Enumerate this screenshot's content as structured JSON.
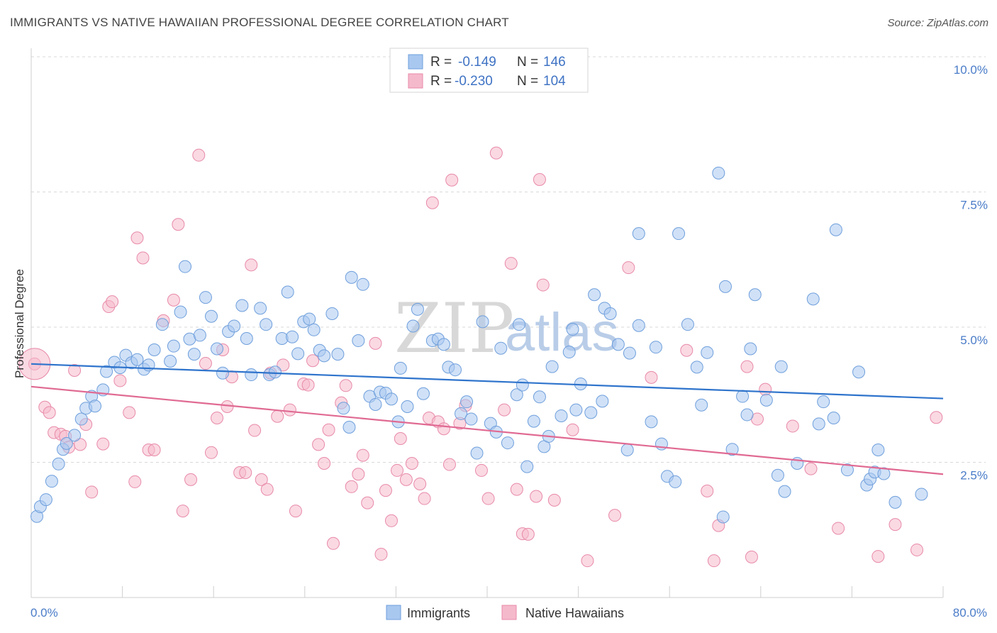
{
  "title": "IMMIGRANTS VS NATIVE HAWAIIAN PROFESSIONAL DEGREE CORRELATION CHART",
  "source": "Source: ZipAtlas.com",
  "watermark": {
    "zip": "ZIP",
    "atlas": "atlas"
  },
  "colors": {
    "blue_fill": "#a9c8f0",
    "blue_stroke": "#6f9fdc",
    "blue_line": "#2f74cc",
    "pink_fill": "#f5b9cc",
    "pink_stroke": "#e88aa8",
    "pink_line": "#e06a93",
    "grid": "#d8d8d8",
    "axis_label": "#4a7cc8"
  },
  "legend": {
    "rows": [
      {
        "r_label": "R =",
        "r_value": "-0.149",
        "n_label": "N =",
        "n_value": "146"
      },
      {
        "r_label": "R =",
        "r_value": "-0.230",
        "n_label": "N =",
        "n_value": "104"
      }
    ]
  },
  "bottom_legend": [
    "Immigrants",
    "Native Hawaiians"
  ],
  "chart_data": {
    "type": "scatter",
    "title": "IMMIGRANTS VS NATIVE HAWAIIAN PROFESSIONAL DEGREE CORRELATION CHART",
    "xlabel": "",
    "ylabel": "Professional Degree",
    "xlim": [
      0,
      80
    ],
    "ylim": [
      0,
      10.0
    ],
    "x_tick_labels": [
      "0.0%",
      "80.0%"
    ],
    "y_ticks": [
      2.5,
      5.0,
      7.5,
      10.0
    ],
    "y_tick_labels": [
      "2.5%",
      "5.0%",
      "7.5%",
      "10.0%"
    ],
    "grid": "horizontal dashed",
    "legend_position": "top-center",
    "series": [
      {
        "name": "Immigrants",
        "r": -0.149,
        "n": 146,
        "trend": {
          "x": [
            0,
            80
          ],
          "y": [
            4.32,
            3.68
          ]
        },
        "points": [
          [
            0.5,
            1.5
          ],
          [
            0.8,
            1.68
          ],
          [
            1.3,
            1.81
          ],
          [
            1.8,
            2.15
          ],
          [
            2.4,
            2.47
          ],
          [
            2.8,
            2.74
          ],
          [
            3.1,
            2.85
          ],
          [
            3.8,
            3.0
          ],
          [
            4.4,
            3.3
          ],
          [
            4.8,
            3.5
          ],
          [
            5.3,
            3.72
          ],
          [
            5.6,
            3.54
          ],
          [
            6.3,
            3.84
          ],
          [
            6.6,
            4.18
          ],
          [
            7.3,
            4.35
          ],
          [
            7.8,
            4.25
          ],
          [
            8.3,
            4.48
          ],
          [
            8.8,
            4.34
          ],
          [
            9.3,
            4.4
          ],
          [
            9.9,
            4.22
          ],
          [
            10.3,
            4.3
          ],
          [
            10.8,
            4.58
          ],
          [
            11.5,
            5.05
          ],
          [
            12.2,
            4.37
          ],
          [
            12.5,
            4.65
          ],
          [
            13.1,
            5.28
          ],
          [
            13.5,
            6.12
          ],
          [
            13.9,
            4.78
          ],
          [
            14.3,
            4.5
          ],
          [
            14.8,
            4.85
          ],
          [
            15.3,
            5.55
          ],
          [
            15.8,
            5.2
          ],
          [
            16.3,
            4.6
          ],
          [
            16.8,
            4.15
          ],
          [
            17.3,
            4.92
          ],
          [
            17.8,
            5.02
          ],
          [
            18.5,
            5.4
          ],
          [
            18.9,
            4.79
          ],
          [
            19.3,
            4.12
          ],
          [
            20.1,
            5.35
          ],
          [
            20.6,
            5.05
          ],
          [
            20.9,
            4.12
          ],
          [
            21.4,
            4.17
          ],
          [
            22.0,
            4.79
          ],
          [
            22.5,
            5.65
          ],
          [
            22.9,
            4.82
          ],
          [
            23.4,
            4.51
          ],
          [
            23.9,
            5.1
          ],
          [
            24.4,
            5.15
          ],
          [
            24.8,
            4.95
          ],
          [
            25.3,
            4.57
          ],
          [
            25.7,
            4.47
          ],
          [
            26.4,
            5.25
          ],
          [
            26.9,
            4.5
          ],
          [
            27.4,
            3.5
          ],
          [
            27.9,
            3.15
          ],
          [
            28.1,
            5.92
          ],
          [
            28.7,
            4.75
          ],
          [
            29.1,
            5.79
          ],
          [
            29.7,
            3.72
          ],
          [
            30.2,
            3.57
          ],
          [
            30.6,
            3.8
          ],
          [
            31.1,
            3.78
          ],
          [
            31.6,
            3.67
          ],
          [
            32.2,
            3.25
          ],
          [
            32.4,
            4.24
          ],
          [
            33.0,
            3.53
          ],
          [
            33.5,
            5.02
          ],
          [
            33.9,
            5.33
          ],
          [
            34.4,
            3.77
          ],
          [
            35.2,
            4.75
          ],
          [
            35.7,
            4.78
          ],
          [
            36.2,
            4.68
          ],
          [
            36.6,
            4.26
          ],
          [
            37.2,
            4.21
          ],
          [
            37.7,
            3.4
          ],
          [
            38.2,
            3.62
          ],
          [
            38.6,
            3.3
          ],
          [
            39.1,
            2.67
          ],
          [
            39.6,
            5.1
          ],
          [
            40.3,
            3.22
          ],
          [
            40.8,
            3.06
          ],
          [
            41.2,
            4.61
          ],
          [
            41.8,
            2.86
          ],
          [
            42.6,
            3.75
          ],
          [
            42.8,
            5.05
          ],
          [
            43.1,
            3.93
          ],
          [
            43.5,
            2.42
          ],
          [
            44.1,
            3.26
          ],
          [
            44.6,
            3.71
          ],
          [
            45.0,
            2.79
          ],
          [
            45.4,
            2.98
          ],
          [
            45.7,
            4.27
          ],
          [
            46.5,
            3.36
          ],
          [
            47.2,
            4.54
          ],
          [
            47.5,
            4.96
          ],
          [
            47.8,
            3.47
          ],
          [
            48.2,
            3.95
          ],
          [
            49.1,
            3.42
          ],
          [
            49.4,
            5.6
          ],
          [
            50.1,
            3.63
          ],
          [
            50.3,
            5.35
          ],
          [
            50.8,
            5.25
          ],
          [
            51.5,
            4.68
          ],
          [
            52.3,
            2.73
          ],
          [
            52.5,
            4.52
          ],
          [
            53.3,
            6.73
          ],
          [
            53.3,
            5.03
          ],
          [
            54.4,
            3.25
          ],
          [
            54.8,
            4.63
          ],
          [
            55.3,
            2.84
          ],
          [
            55.8,
            2.24
          ],
          [
            56.5,
            2.14
          ],
          [
            56.8,
            6.73
          ],
          [
            57.6,
            5.05
          ],
          [
            58.4,
            4.26
          ],
          [
            58.8,
            3.56
          ],
          [
            59.3,
            4.53
          ],
          [
            60.3,
            7.85
          ],
          [
            60.7,
            1.49
          ],
          [
            60.9,
            5.75
          ],
          [
            61.5,
            2.74
          ],
          [
            62.4,
            3.72
          ],
          [
            62.8,
            3.38
          ],
          [
            63.1,
            4.6
          ],
          [
            63.5,
            5.6
          ],
          [
            64.5,
            3.65
          ],
          [
            65.5,
            2.26
          ],
          [
            65.8,
            4.27
          ],
          [
            66.1,
            1.96
          ],
          [
            67.2,
            2.48
          ],
          [
            68.6,
            5.52
          ],
          [
            69.1,
            3.21
          ],
          [
            69.5,
            3.62
          ],
          [
            70.4,
            3.32
          ],
          [
            70.6,
            6.8
          ],
          [
            71.6,
            2.36
          ],
          [
            72.6,
            4.17
          ],
          [
            73.3,
            2.08
          ],
          [
            73.6,
            2.19
          ],
          [
            74.0,
            2.32
          ],
          [
            74.3,
            2.73
          ],
          [
            74.8,
            2.29
          ],
          [
            75.8,
            1.76
          ],
          [
            78.1,
            1.91
          ]
        ]
      },
      {
        "name": "Native Hawaiians",
        "r": -0.23,
        "n": 104,
        "trend": {
          "x": [
            0,
            80
          ],
          "y": [
            3.9,
            2.28
          ]
        },
        "points": [
          [
            0.3,
            4.32
          ],
          [
            1.2,
            3.52
          ],
          [
            1.6,
            3.42
          ],
          [
            2.0,
            3.05
          ],
          [
            2.6,
            3.02
          ],
          [
            3.0,
            2.98
          ],
          [
            3.3,
            2.78
          ],
          [
            3.8,
            4.2
          ],
          [
            4.3,
            2.83
          ],
          [
            4.8,
            3.2
          ],
          [
            5.3,
            1.95
          ],
          [
            6.3,
            2.84
          ],
          [
            6.8,
            5.38
          ],
          [
            7.1,
            5.47
          ],
          [
            7.8,
            4.01
          ],
          [
            8.6,
            3.42
          ],
          [
            9.1,
            2.14
          ],
          [
            9.3,
            6.65
          ],
          [
            9.8,
            6.28
          ],
          [
            10.3,
            2.73
          ],
          [
            10.8,
            2.73
          ],
          [
            11.6,
            5.12
          ],
          [
            12.5,
            5.5
          ],
          [
            12.9,
            6.9
          ],
          [
            13.3,
            1.6
          ],
          [
            14.0,
            2.18
          ],
          [
            14.7,
            8.18
          ],
          [
            15.3,
            4.33
          ],
          [
            15.8,
            2.68
          ],
          [
            16.3,
            3.32
          ],
          [
            16.8,
            4.58
          ],
          [
            17.2,
            3.53
          ],
          [
            17.6,
            4.08
          ],
          [
            18.3,
            2.31
          ],
          [
            18.8,
            2.31
          ],
          [
            19.3,
            6.15
          ],
          [
            19.6,
            3.09
          ],
          [
            20.2,
            2.18
          ],
          [
            20.7,
            2.0
          ],
          [
            21.0,
            4.15
          ],
          [
            21.6,
            3.35
          ],
          [
            22.1,
            4.3
          ],
          [
            22.7,
            3.47
          ],
          [
            23.2,
            1.6
          ],
          [
            23.9,
            3.95
          ],
          [
            24.3,
            3.93
          ],
          [
            24.7,
            4.38
          ],
          [
            25.2,
            2.83
          ],
          [
            25.7,
            2.48
          ],
          [
            26.1,
            3.1
          ],
          [
            26.5,
            1.0
          ],
          [
            27.2,
            3.6
          ],
          [
            27.6,
            3.92
          ],
          [
            28.1,
            2.05
          ],
          [
            28.7,
            2.28
          ],
          [
            29.1,
            2.63
          ],
          [
            29.5,
            1.75
          ],
          [
            30.2,
            4.7
          ],
          [
            30.7,
            0.8
          ],
          [
            31.1,
            1.98
          ],
          [
            31.6,
            1.42
          ],
          [
            32.1,
            2.35
          ],
          [
            32.4,
            2.94
          ],
          [
            32.9,
            2.18
          ],
          [
            33.4,
            2.48
          ],
          [
            34.1,
            2.1
          ],
          [
            34.5,
            1.83
          ],
          [
            34.9,
            3.32
          ],
          [
            35.2,
            7.3
          ],
          [
            35.7,
            3.25
          ],
          [
            36.2,
            3.12
          ],
          [
            36.7,
            2.46
          ],
          [
            36.9,
            7.72
          ],
          [
            37.6,
            3.22
          ],
          [
            38.1,
            3.55
          ],
          [
            39.5,
            2.35
          ],
          [
            40.1,
            1.83
          ],
          [
            40.8,
            8.22
          ],
          [
            41.5,
            3.47
          ],
          [
            42.1,
            6.18
          ],
          [
            42.6,
            2.0
          ],
          [
            43.1,
            1.18
          ],
          [
            43.6,
            1.17
          ],
          [
            44.3,
            1.87
          ],
          [
            44.6,
            7.73
          ],
          [
            44.9,
            5.78
          ],
          [
            45.9,
            1.8
          ],
          [
            47.5,
            3.1
          ],
          [
            48.8,
            0.68
          ],
          [
            51.2,
            1.52
          ],
          [
            52.4,
            6.1
          ],
          [
            54.4,
            4.07
          ],
          [
            57.5,
            4.57
          ],
          [
            59.3,
            1.97
          ],
          [
            59.9,
            0.68
          ],
          [
            60.3,
            1.33
          ],
          [
            62.8,
            4.27
          ],
          [
            63.2,
            0.75
          ],
          [
            63.7,
            3.3
          ],
          [
            64.4,
            3.85
          ],
          [
            66.8,
            3.17
          ],
          [
            68.4,
            2.38
          ],
          [
            70.8,
            1.28
          ],
          [
            74.3,
            0.76
          ],
          [
            75.8,
            1.35
          ],
          [
            77.7,
            0.88
          ],
          [
            79.4,
            3.33
          ]
        ]
      }
    ]
  }
}
